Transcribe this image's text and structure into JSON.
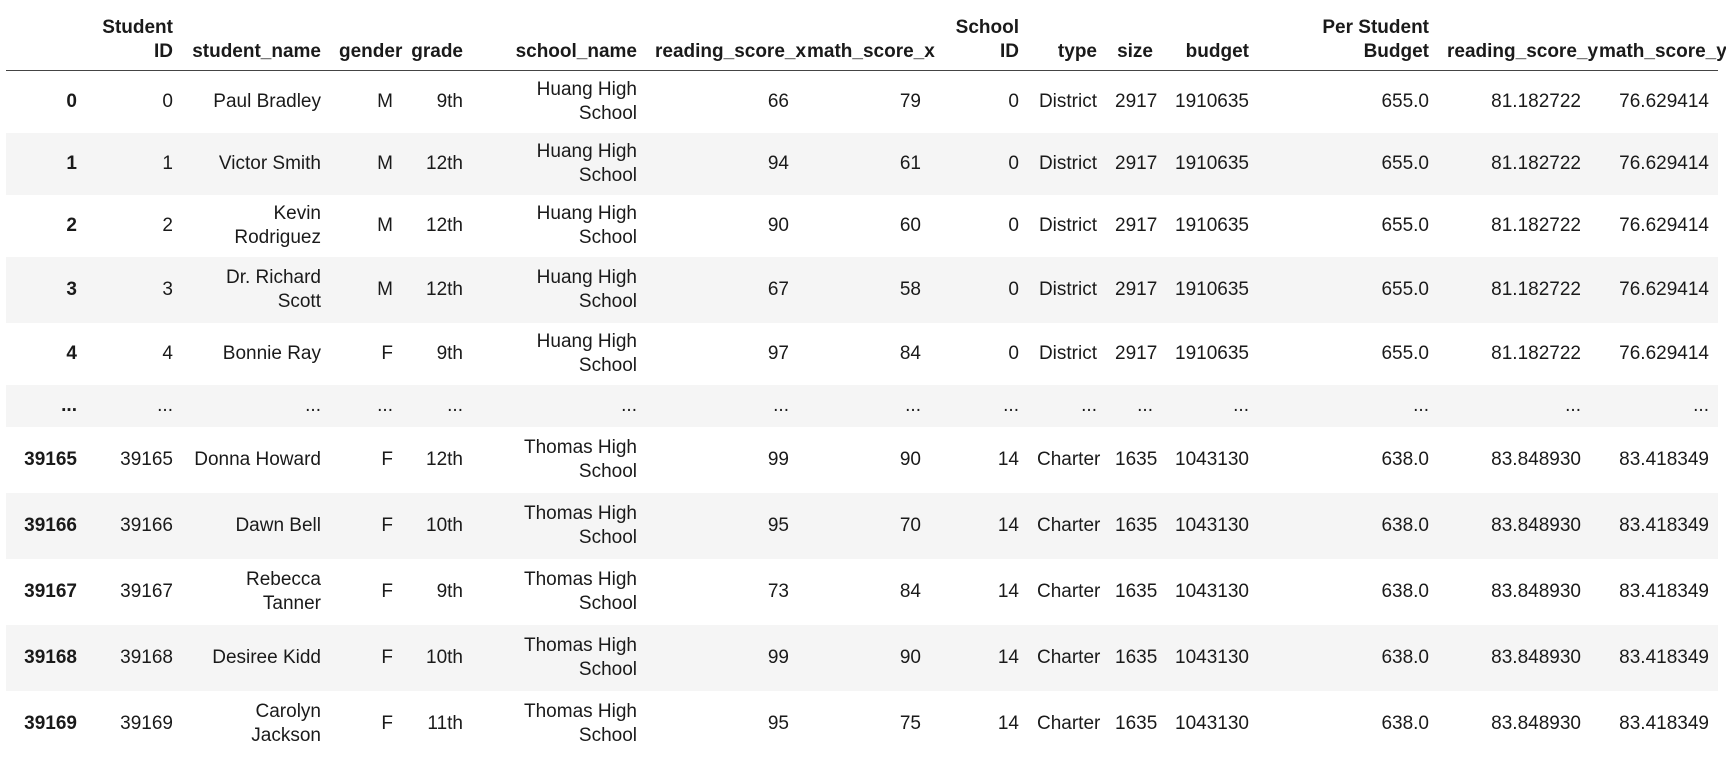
{
  "table": {
    "columns": [
      "",
      "Student ID",
      "student_name",
      "gender",
      "grade",
      "school_name",
      "reading_score_x",
      "math_score_x",
      "School ID",
      "type",
      "size",
      "budget",
      "Per Student Budget",
      "reading_score_y",
      "math_score_y"
    ],
    "rows": [
      {
        "index": "0",
        "cells": [
          "0",
          "Paul Bradley",
          "M",
          "9th",
          "Huang High School",
          "66",
          "79",
          "0",
          "District",
          "2917",
          "1910635",
          "655.0",
          "81.182722",
          "76.629414"
        ]
      },
      {
        "index": "1",
        "cells": [
          "1",
          "Victor Smith",
          "M",
          "12th",
          "Huang High School",
          "94",
          "61",
          "0",
          "District",
          "2917",
          "1910635",
          "655.0",
          "81.182722",
          "76.629414"
        ]
      },
      {
        "index": "2",
        "cells": [
          "2",
          "Kevin Rodriguez",
          "M",
          "12th",
          "Huang High School",
          "90",
          "60",
          "0",
          "District",
          "2917",
          "1910635",
          "655.0",
          "81.182722",
          "76.629414"
        ]
      },
      {
        "index": "3",
        "cells": [
          "3",
          "Dr. Richard Scott",
          "M",
          "12th",
          "Huang High School",
          "67",
          "58",
          "0",
          "District",
          "2917",
          "1910635",
          "655.0",
          "81.182722",
          "76.629414"
        ]
      },
      {
        "index": "4",
        "cells": [
          "4",
          "Bonnie Ray",
          "F",
          "9th",
          "Huang High School",
          "97",
          "84",
          "0",
          "District",
          "2917",
          "1910635",
          "655.0",
          "81.182722",
          "76.629414"
        ]
      },
      {
        "index": "...",
        "cells": [
          "...",
          "...",
          "...",
          "...",
          "...",
          "...",
          "...",
          "...",
          "...",
          "...",
          "...",
          "...",
          "...",
          "..."
        ]
      },
      {
        "index": "39165",
        "cells": [
          "39165",
          "Donna Howard",
          "F",
          "12th",
          "Thomas High School",
          "99",
          "90",
          "14",
          "Charter",
          "1635",
          "1043130",
          "638.0",
          "83.848930",
          "83.418349"
        ]
      },
      {
        "index": "39166",
        "cells": [
          "39166",
          "Dawn Bell",
          "F",
          "10th",
          "Thomas High School",
          "95",
          "70",
          "14",
          "Charter",
          "1635",
          "1043130",
          "638.0",
          "83.848930",
          "83.418349"
        ]
      },
      {
        "index": "39167",
        "cells": [
          "39167",
          "Rebecca Tanner",
          "F",
          "9th",
          "Thomas High School",
          "73",
          "84",
          "14",
          "Charter",
          "1635",
          "1043130",
          "638.0",
          "83.848930",
          "83.418349"
        ]
      },
      {
        "index": "39168",
        "cells": [
          "39168",
          "Desiree Kidd",
          "F",
          "10th",
          "Thomas High School",
          "99",
          "90",
          "14",
          "Charter",
          "1635",
          "1043130",
          "638.0",
          "83.848930",
          "83.418349"
        ]
      },
      {
        "index": "39169",
        "cells": [
          "39169",
          "Carolyn Jackson",
          "F",
          "11th",
          "Thomas High School",
          "95",
          "75",
          "14",
          "Charter",
          "1635",
          "1043130",
          "638.0",
          "83.848930",
          "83.418349"
        ]
      }
    ]
  }
}
